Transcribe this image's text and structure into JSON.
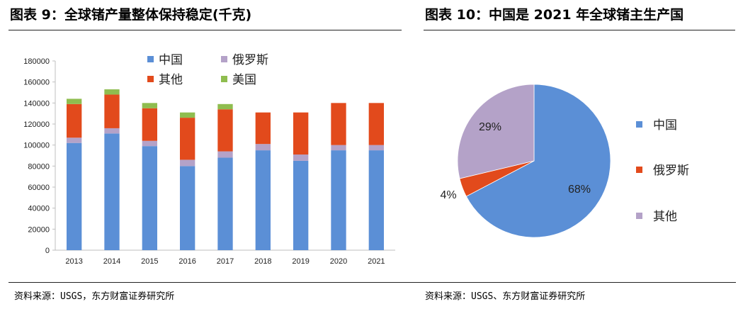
{
  "left_title": "图表 9：全球锗产量整体保持稳定(千克)",
  "right_title": "图表 10：中国是 2021 年全球锗主生产国",
  "left_source": "资料来源：USGS，东方财富证券研究所",
  "right_source": "资料来源：USGS、东方财富证券研究所",
  "chart_data": [
    {
      "type": "bar",
      "stacked": true,
      "title": "",
      "categories": [
        "2013",
        "2014",
        "2015",
        "2016",
        "2017",
        "2018",
        "2019",
        "2020",
        "2021"
      ],
      "ylim": [
        0,
        180000
      ],
      "yticks": [
        0,
        20000,
        40000,
        60000,
        80000,
        100000,
        120000,
        140000,
        160000,
        180000
      ],
      "legend_position": "top",
      "series": [
        {
          "name": "中国",
          "color": "#5b8fd6",
          "values": [
            102000,
            111000,
            99000,
            80000,
            88000,
            95000,
            85000,
            95000,
            95000
          ]
        },
        {
          "name": "俄罗斯",
          "color": "#b4a2c8",
          "values": [
            5000,
            5000,
            5000,
            6000,
            6000,
            6000,
            6000,
            5000,
            5000
          ]
        },
        {
          "name": "其他",
          "color": "#e24a1c",
          "values": [
            32000,
            32000,
            31000,
            40000,
            40000,
            30000,
            40000,
            40000,
            40000
          ]
        },
        {
          "name": "美国",
          "color": "#8fbd4f",
          "values": [
            5000,
            5000,
            5000,
            5000,
            5000,
            0,
            0,
            0,
            0
          ]
        }
      ]
    },
    {
      "type": "pie",
      "title": "",
      "legend_position": "right",
      "slices": [
        {
          "name": "中国",
          "value": 68,
          "label": "68%",
          "color": "#5b8fd6"
        },
        {
          "name": "俄罗斯",
          "value": 4,
          "label": "4%",
          "color": "#e24a1c"
        },
        {
          "name": "其他",
          "value": 29,
          "label": "29%",
          "color": "#b4a2c8"
        }
      ]
    }
  ]
}
